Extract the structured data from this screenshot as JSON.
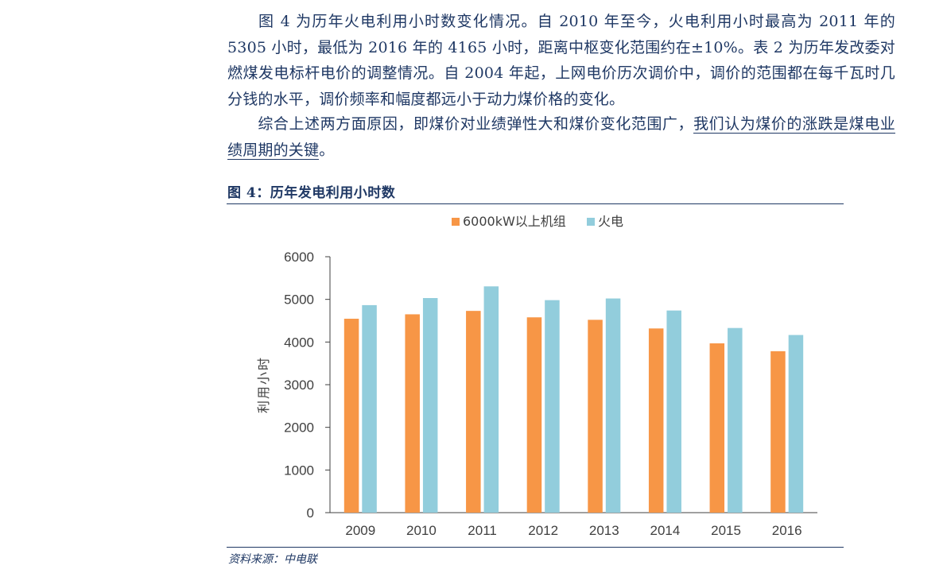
{
  "paragraph1": {
    "text": "图 4 为历年火电利用小时数变化情况。自 2010 年至今，火电利用小时最高为 2011 年的 5305 小时，最低为 2016 年的 4165 小时，距离中枢变化范围约在±10%。表 2 为历年发改委对燃煤发电标杆电价的调整情况。自 2004 年起，上网电价历次调价中，调价的范围都在每千瓦时几分钱的水平，调价频率和幅度都远小于动力煤价格的变化。"
  },
  "paragraph2": {
    "text_plain": "综合上述两方面原因，即煤价对业绩弹性大和煤价变化范围广，",
    "text_underlined": "我们认为煤价的涨跌是煤电业绩周期的关键",
    "text_end": "。"
  },
  "figure": {
    "title": "图 4：历年发电利用小时数",
    "source": "资料来源：中电联"
  },
  "colors": {
    "text": "#1f3864",
    "series_orange": "#f79646",
    "series_blue": "#92cddc"
  },
  "chart_data": {
    "type": "bar",
    "title": "",
    "xlabel": "",
    "ylabel": "利用小时",
    "ylim": [
      0,
      6000
    ],
    "yticks": [
      0,
      1000,
      2000,
      3000,
      4000,
      5000,
      6000
    ],
    "grid": false,
    "legend_position": "top",
    "categories": [
      "2009",
      "2010",
      "2011",
      "2012",
      "2013",
      "2014",
      "2015",
      "2016"
    ],
    "series": [
      {
        "name": "6000kW以上机组",
        "color": "#f79646",
        "values": [
          4546,
          4650,
          4730,
          4579,
          4521,
          4318,
          3969,
          3785
        ]
      },
      {
        "name": "火电",
        "color": "#92cddc",
        "values": [
          4865,
          5031,
          5305,
          4982,
          5021,
          4739,
          4329,
          4165
        ]
      }
    ]
  }
}
